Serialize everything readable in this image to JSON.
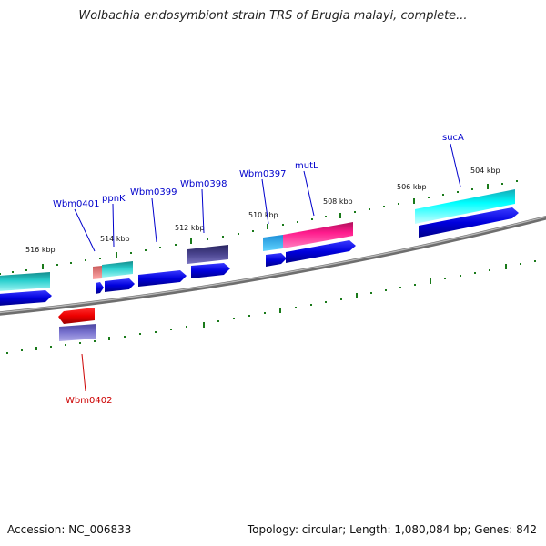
{
  "title": "Wolbachia endosymbiont strain TRS of Brugia malayi, complete...",
  "footer": {
    "accession": "Accession: NC_006833",
    "summary": "Topology: circular; Length: 1,080,084 bp; Genes: 842"
  },
  "colors": {
    "backbone": "#808080",
    "tick": "#1a7a1a",
    "label_blue": "#0000cc",
    "label_red": "#cc0000"
  },
  "tick_labels": [
    "516 kbp",
    "514 kbp",
    "512 kbp",
    "510 kbp",
    "508 kbp",
    "506 kbp",
    "504 kbp"
  ],
  "gene_labels": [
    {
      "text": "Wbm0401",
      "color": "#0000cc"
    },
    {
      "text": "ppnK",
      "color": "#0000cc"
    },
    {
      "text": "Wbm0399",
      "color": "#0000cc"
    },
    {
      "text": "Wbm0398",
      "color": "#0000cc"
    },
    {
      "text": "Wbm0397",
      "color": "#0000cc"
    },
    {
      "text": "mutL",
      "color": "#0000cc"
    },
    {
      "text": "sucA",
      "color": "#0000cc"
    },
    {
      "text": "Wbm0402",
      "color": "#cc0000"
    }
  ]
}
